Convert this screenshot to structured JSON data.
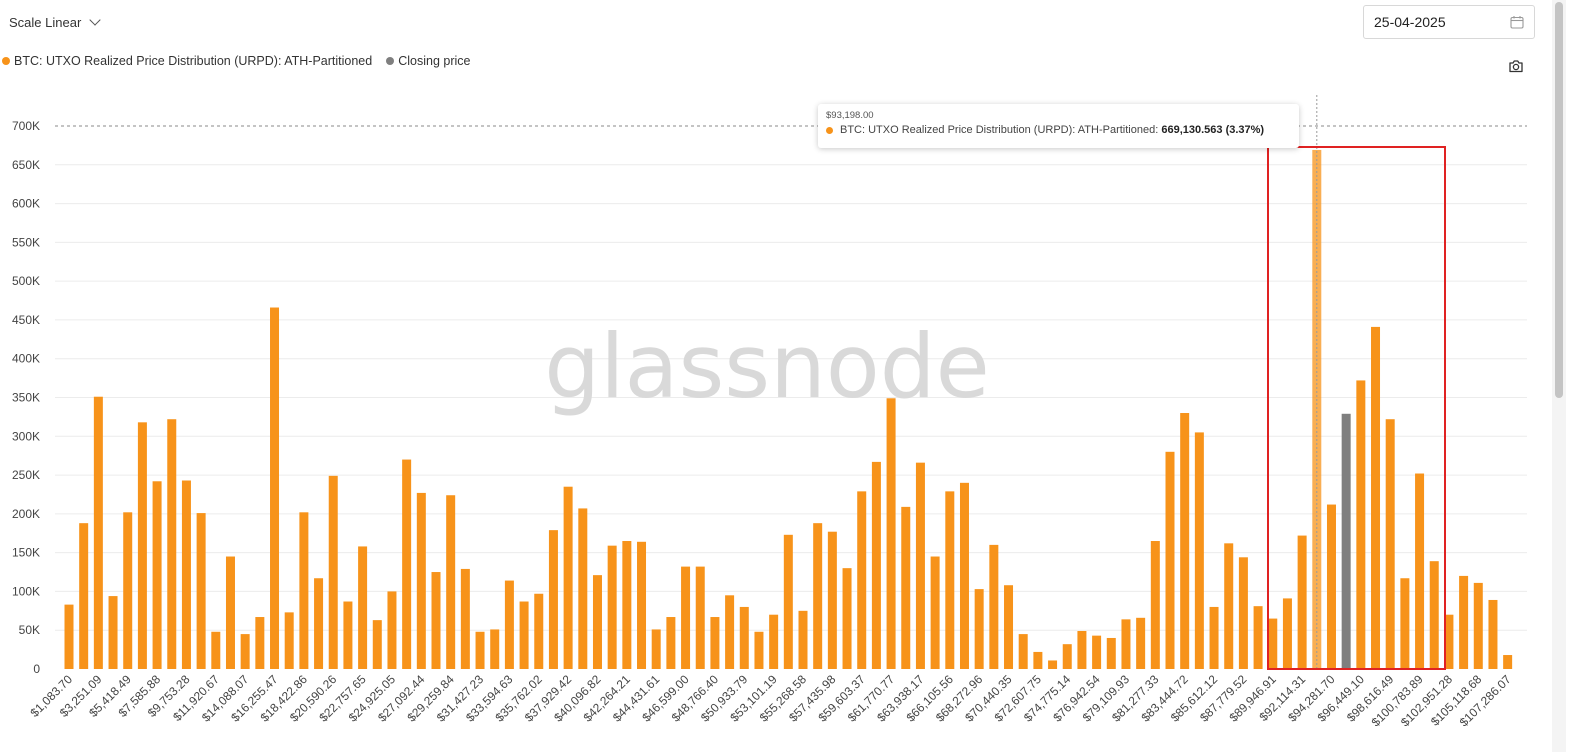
{
  "controls": {
    "scale_label": "Scale Linear",
    "date_value": "25-04-2025",
    "calendar_icon": "calendar-icon",
    "camera_icon": "camera-icon"
  },
  "colors": {
    "bar": "#f7931a",
    "closing": "#7f7f7f",
    "highlight_box": "#e02222",
    "watermark": "#d9d9d9"
  },
  "legend": [
    {
      "label": "BTC: UTXO Realized Price Distribution (URPD): ATH-Partitioned",
      "color": "#f7931a"
    },
    {
      "label": "Closing price",
      "color": "#7f7f7f"
    }
  ],
  "tooltip": {
    "x_value": "$93,198.00",
    "series_label": "BTC: UTXO Realized Price Distribution (URPD): ATH-Partitioned:",
    "value_text": "669,130.563 (3.37%)"
  },
  "watermark": "glassnode",
  "chart_data": {
    "type": "bar",
    "title": "",
    "xlabel": "",
    "ylabel": "",
    "ylim": [
      0,
      700000
    ],
    "y_ticks": [
      "0",
      "50K",
      "100K",
      "150K",
      "200K",
      "250K",
      "300K",
      "350K",
      "400K",
      "450K",
      "500K",
      "550K",
      "600K",
      "650K",
      "700K"
    ],
    "x_tick_labels": [
      "$1,083.70",
      "$3,251.09",
      "$5,418.49",
      "$7,585.88",
      "$9,753.28",
      "$11,920.67",
      "$14,088.07",
      "$16,255.47",
      "$18,422.86",
      "$20,590.26",
      "$22,757.65",
      "$24,925.05",
      "$27,092.44",
      "$29,259.84",
      "$31,427.23",
      "$33,594.63",
      "$35,762.02",
      "$37,929.42",
      "$40,096.82",
      "$42,264.21",
      "$44,431.61",
      "$46,599.00",
      "$48,766.40",
      "$50,933.79",
      "$53,101.19",
      "$55,268.58",
      "$57,435.98",
      "$59,603.37",
      "$61,770.77",
      "$63,938.17",
      "$66,105.56",
      "$68,272.96",
      "$70,440.35",
      "$72,607.75",
      "$74,775.14",
      "$76,942.54",
      "$79,109.93",
      "$81,277.33",
      "$83,444.72",
      "$85,612.12",
      "$87,779.52",
      "$89,946.91",
      "$92,114.31",
      "$94,281.70",
      "$96,449.10",
      "$98,616.49",
      "$100,783.89",
      "$102,951.28",
      "$105,118.68",
      "$107,286.07"
    ],
    "x_start": 1083.7,
    "bin_width": 1083.7,
    "reference_line": 700000,
    "closing_price_bin": 87,
    "hovered_bin": 85,
    "series": [
      {
        "name": "BTC: UTXO Realized Price Distribution (URPD): ATH-Partitioned",
        "values": [
          83000,
          188000,
          351000,
          94000,
          202000,
          318000,
          242000,
          322000,
          243000,
          201000,
          48000,
          145000,
          45000,
          67000,
          466000,
          73000,
          202000,
          117000,
          249000,
          87000,
          158000,
          63000,
          100000,
          270000,
          227000,
          125000,
          224000,
          129000,
          48000,
          51000,
          114000,
          87000,
          97000,
          179000,
          235000,
          207000,
          121000,
          159000,
          165000,
          164000,
          51000,
          67000,
          132000,
          132000,
          67000,
          95000,
          80000,
          48000,
          70000,
          173000,
          75000,
          188000,
          177000,
          130000,
          229000,
          267000,
          349000,
          209000,
          266000,
          145000,
          229000,
          240000,
          103000,
          160000,
          108000,
          45000,
          22000,
          11000,
          32000,
          49000,
          43000,
          40000,
          64000,
          66000,
          165000,
          280000,
          330000,
          305000,
          80000,
          162000,
          144000,
          81000,
          65000,
          91000,
          172000,
          669130.563,
          212000,
          329000,
          372000,
          441000,
          322000,
          117000,
          252000,
          139000,
          70000,
          120000,
          111000,
          89000,
          18000
        ]
      },
      {
        "name": "Closing price",
        "bin": 87,
        "value": 329000
      }
    ]
  }
}
